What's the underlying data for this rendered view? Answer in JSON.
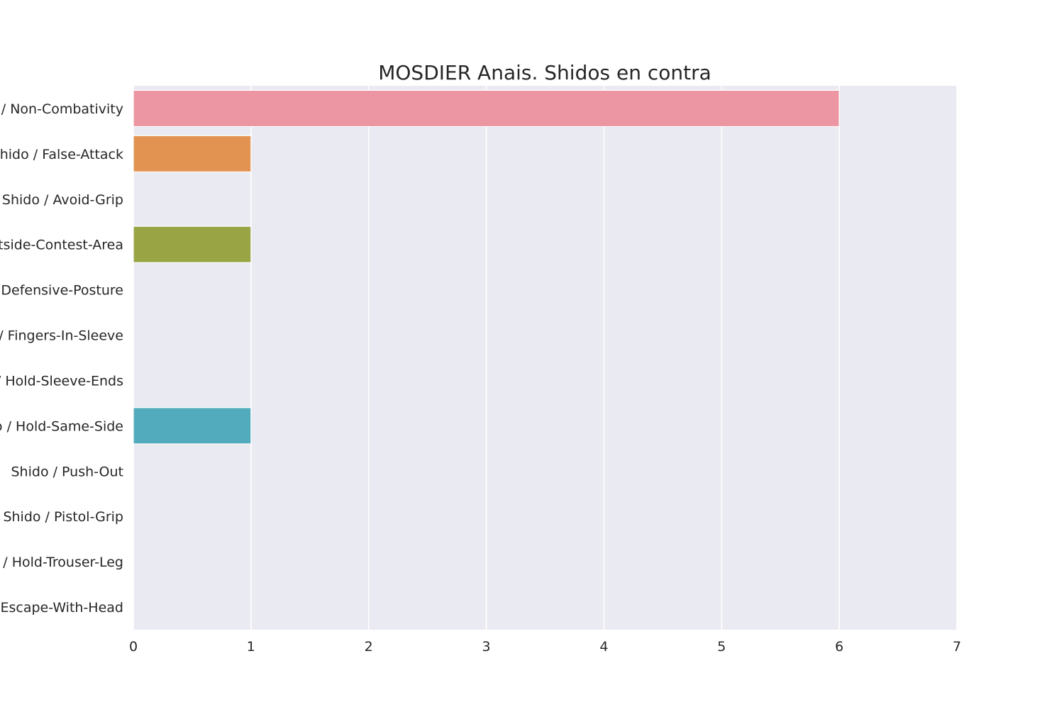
{
  "chart_data": {
    "type": "bar",
    "orientation": "horizontal",
    "title": "MOSDIER Anais. Shidos en contra",
    "xlabel": "",
    "ylabel": "",
    "xlim": [
      0,
      7
    ],
    "x_ticks": [
      "0",
      "1",
      "2",
      "3",
      "4",
      "5",
      "6",
      "7"
    ],
    "grid": true,
    "plot_background": "#eaeaf2",
    "grid_color": "#ffffff",
    "categories": [
      "Shido / Non-Combativity",
      "Shido / False-Attack",
      "Shido / Avoid-Grip",
      "Shido / Outside-Contest-Area",
      "Shido / Defensive-Posture",
      "Shido / Fingers-In-Sleeve",
      "Shido / Hold-Sleeve-Ends",
      "Shido / Hold-Same-Side",
      "Shido / Push-Out",
      "Shido / Pistol-Grip",
      "Shido / Hold-Trouser-Leg",
      "Shido / Escape-With-Head"
    ],
    "values": [
      6,
      1,
      0,
      1,
      0,
      0,
      0,
      1,
      0,
      0,
      0,
      0
    ],
    "colors": [
      "#eb96a2",
      "#e29351",
      "#c9a84a",
      "#99a445",
      "#5eaa55",
      "#4fae83",
      "#50ae9f",
      "#51abbd",
      "#55a3d6",
      "#9b95e0",
      "#d58ad9",
      "#e88ec4"
    ]
  }
}
